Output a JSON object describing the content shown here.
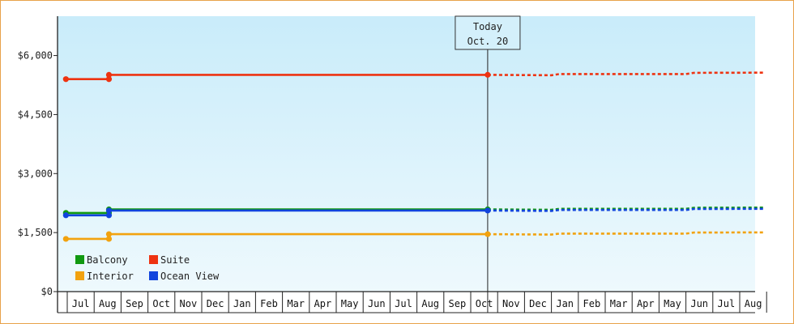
{
  "chart_data": {
    "type": "line",
    "title": "",
    "xlabel": "",
    "ylabel": "",
    "ylim": [
      0,
      7000
    ],
    "y_ticks": [
      {
        "value": 0,
        "label": "$0"
      },
      {
        "value": 1500,
        "label": "$1,500"
      },
      {
        "value": 3000,
        "label": "$3,000"
      },
      {
        "value": 4500,
        "label": "$4,500"
      },
      {
        "value": 6000,
        "label": "$6,000"
      }
    ],
    "months": [
      "Jul",
      "Aug",
      "Sep",
      "Oct",
      "Nov",
      "Dec",
      "Jan",
      "Feb",
      "Mar",
      "Apr",
      "May",
      "Jun",
      "Jul",
      "Aug",
      "Sep",
      "Oct",
      "Nov",
      "Dec",
      "Jan",
      "Feb",
      "Mar",
      "Apr",
      "May",
      "Jun",
      "Jul",
      "Aug"
    ],
    "today": {
      "line1": "Today",
      "line2": "Oct. 20",
      "month_index": 15.63
    },
    "grid": false,
    "background": {
      "top": "#c9ecfa",
      "bottom": "#eef9fd"
    },
    "legend": {
      "placement": "bottom-left",
      "entries": [
        {
          "name": "Balcony",
          "color": "#119911"
        },
        {
          "name": "Suite",
          "color": "#ee3311"
        },
        {
          "name": "Interior",
          "color": "#f2a20f"
        },
        {
          "name": "Ocean View",
          "color": "#1144dd"
        }
      ]
    },
    "series": [
      {
        "name": "Balcony",
        "color": "#119911",
        "actual": [
          [
            -0.05,
            2000
          ],
          [
            1.55,
            2000
          ],
          [
            1.55,
            2090
          ],
          [
            15.63,
            2090
          ]
        ],
        "projected": [
          [
            15.63,
            2090
          ],
          [
            18.0,
            2080
          ],
          [
            18.3,
            2105
          ],
          [
            23.0,
            2105
          ],
          [
            23.3,
            2130
          ],
          [
            25.9,
            2135
          ]
        ]
      },
      {
        "name": "Suite",
        "color": "#ee3311",
        "actual": [
          [
            -0.05,
            5400
          ],
          [
            1.55,
            5400
          ],
          [
            1.55,
            5510
          ],
          [
            15.63,
            5510
          ]
        ],
        "projected": [
          [
            15.63,
            5510
          ],
          [
            18.0,
            5500
          ],
          [
            18.3,
            5530
          ],
          [
            23.0,
            5530
          ],
          [
            23.3,
            5560
          ],
          [
            25.9,
            5565
          ]
        ]
      },
      {
        "name": "Interior",
        "color": "#f2a20f",
        "actual": [
          [
            -0.05,
            1340
          ],
          [
            1.55,
            1340
          ],
          [
            1.55,
            1460
          ],
          [
            15.63,
            1460
          ]
        ],
        "projected": [
          [
            15.63,
            1460
          ],
          [
            18.0,
            1450
          ],
          [
            18.3,
            1475
          ],
          [
            23.0,
            1475
          ],
          [
            23.3,
            1500
          ],
          [
            25.9,
            1505
          ]
        ]
      },
      {
        "name": "Ocean View",
        "color": "#1144dd",
        "actual": [
          [
            -0.05,
            1940
          ],
          [
            1.55,
            1940
          ],
          [
            1.55,
            2060
          ],
          [
            15.63,
            2060
          ]
        ],
        "projected": [
          [
            15.63,
            2060
          ],
          [
            18.0,
            2050
          ],
          [
            18.3,
            2075
          ],
          [
            23.0,
            2075
          ],
          [
            23.3,
            2100
          ],
          [
            25.9,
            2105
          ]
        ]
      }
    ]
  }
}
